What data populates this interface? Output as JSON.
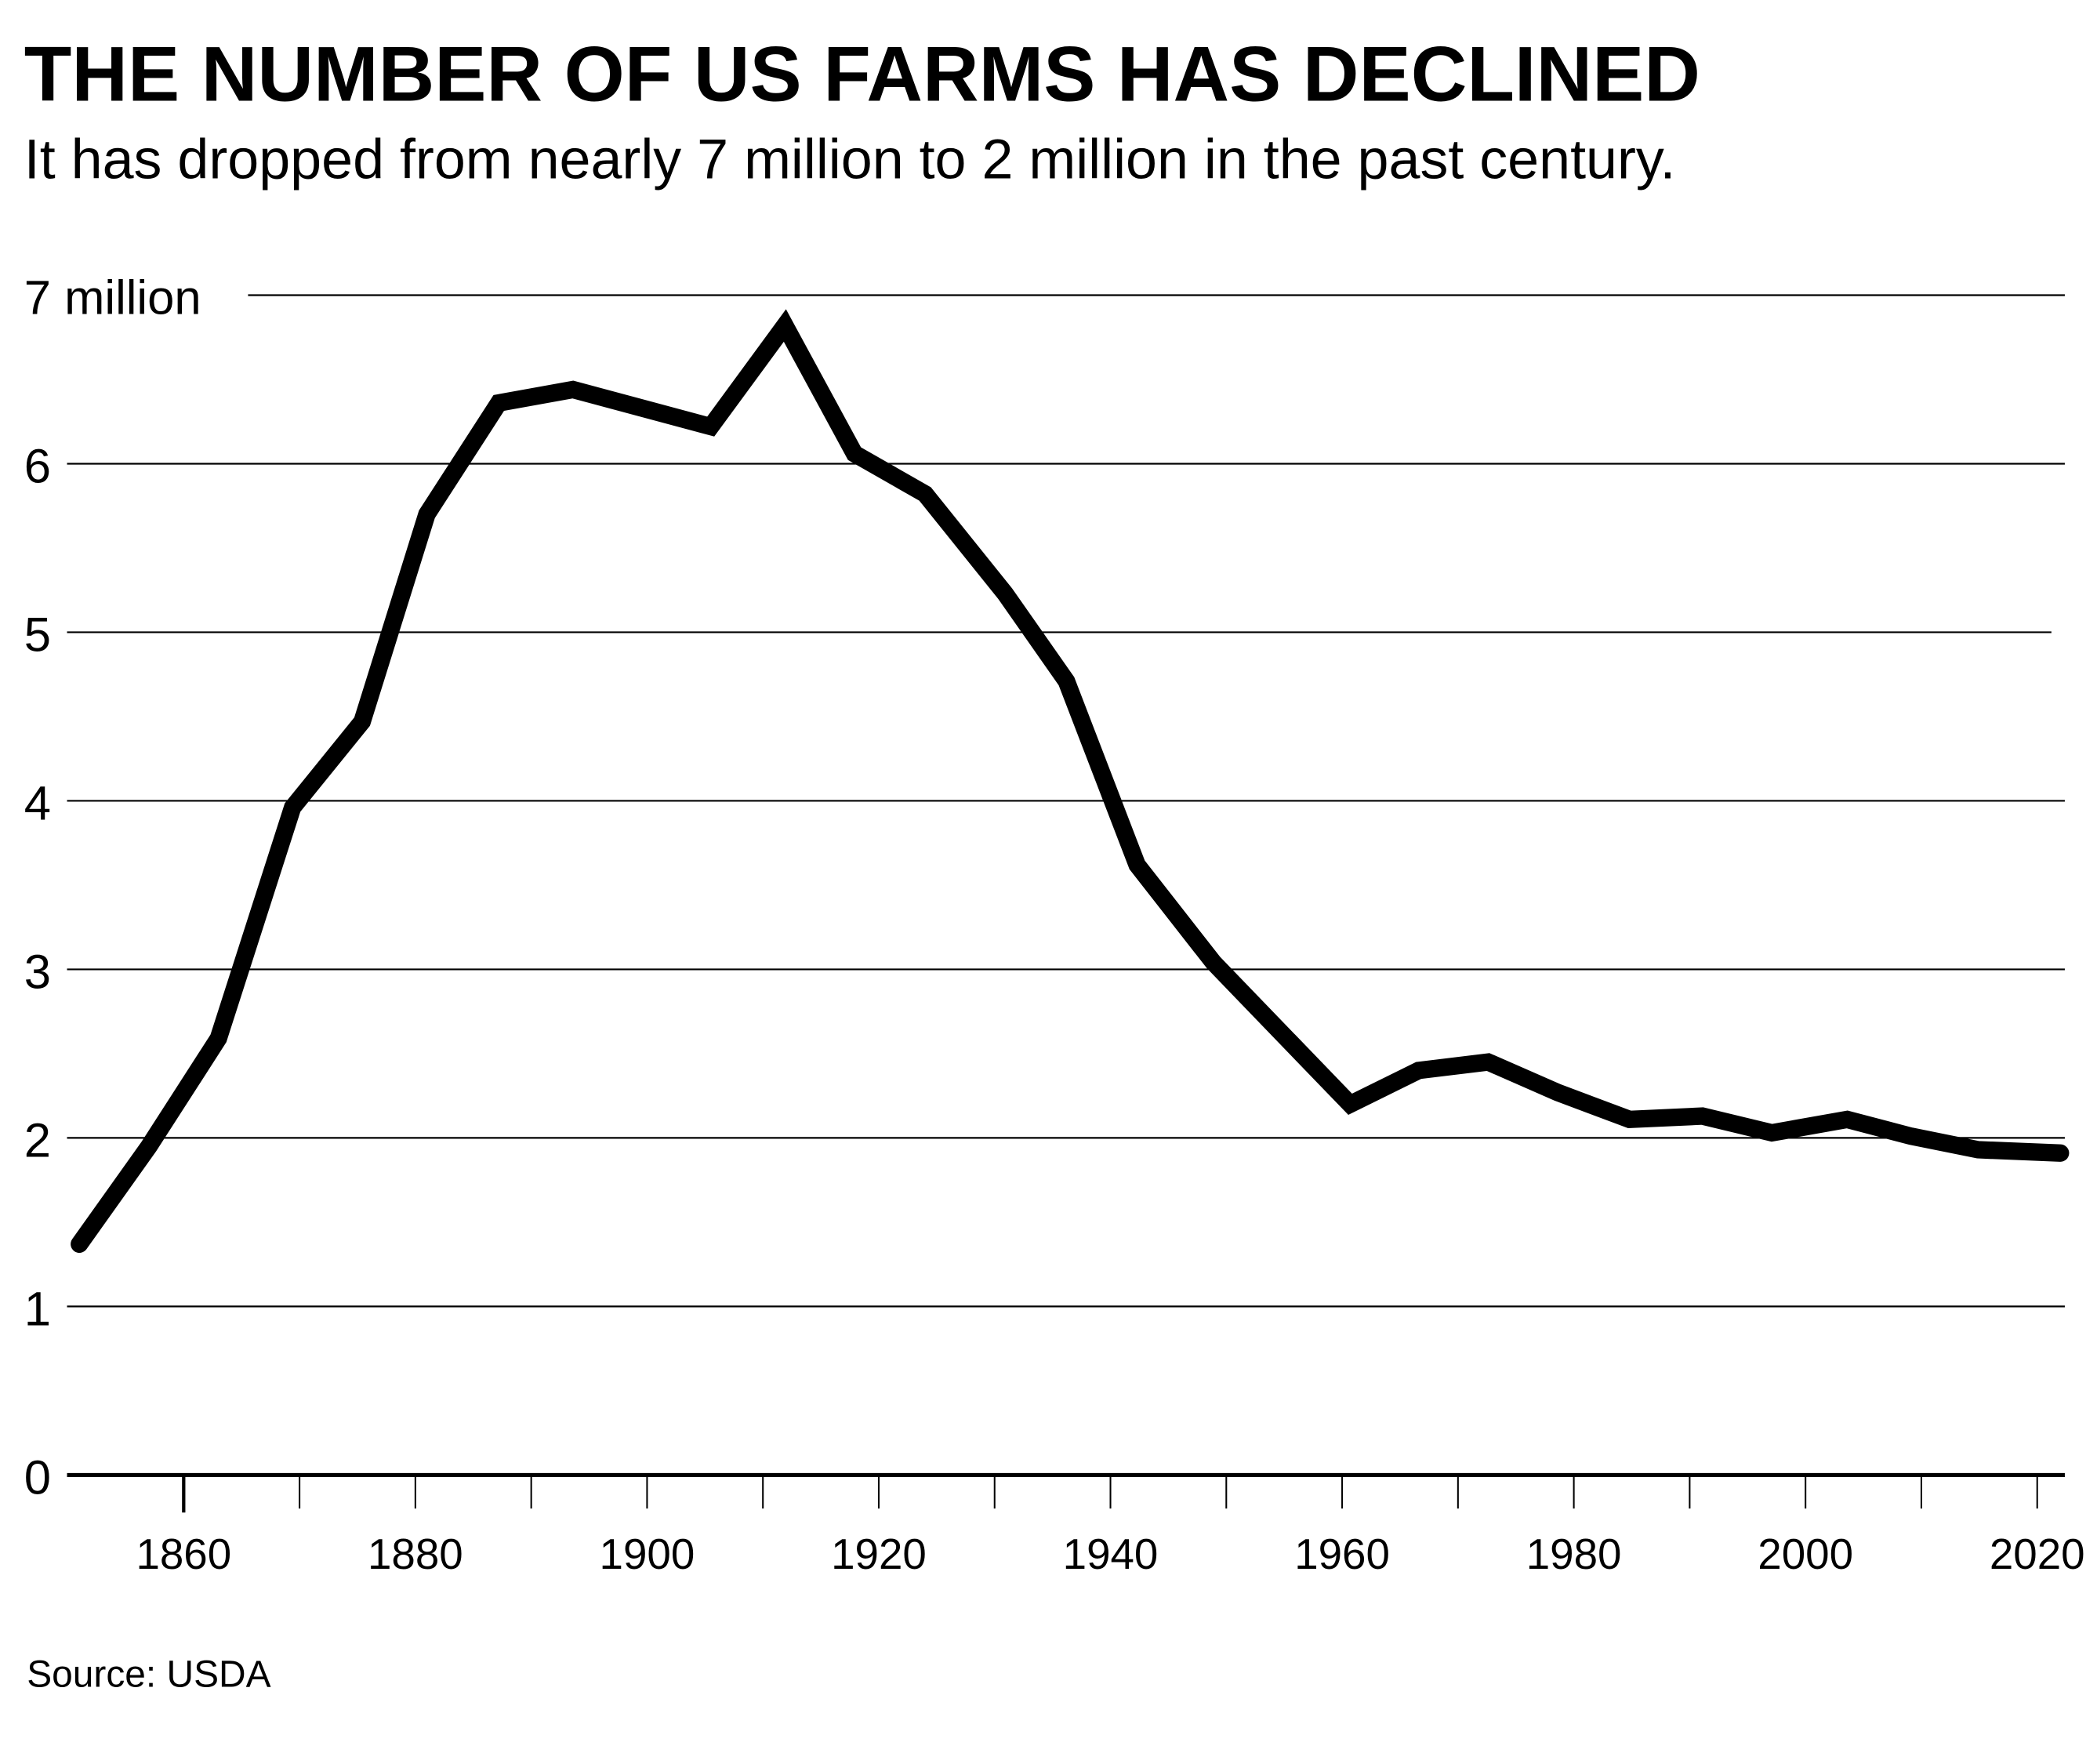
{
  "chart_data": {
    "type": "line",
    "title": "THE NUMBER OF US FARMS HAS DECLINED",
    "subtitle": "It has dropped from nearly 7 million to 2 million in the past century.",
    "source": "Source: USDA",
    "xlabel": "",
    "ylabel": "",
    "xlim": [
      1850,
      2022
    ],
    "ylim": [
      0,
      7
    ],
    "grid": true,
    "y_ticks": [
      {
        "value": 0,
        "label": "0"
      },
      {
        "value": 1,
        "label": "1"
      },
      {
        "value": 2,
        "label": "2"
      },
      {
        "value": 3,
        "label": "3"
      },
      {
        "value": 4,
        "label": "4"
      },
      {
        "value": 5,
        "label": "5"
      },
      {
        "value": 6,
        "label": "6"
      },
      {
        "value": 7,
        "label": "7 million"
      }
    ],
    "x_ticks": [
      1860,
      1870,
      1880,
      1890,
      1900,
      1910,
      1920,
      1930,
      1940,
      1950,
      1960,
      1970,
      1980,
      1990,
      2000,
      2010,
      2020
    ],
    "x_tick_labels": [
      {
        "value": 1860,
        "label": "1860"
      },
      {
        "value": 1880,
        "label": "1880"
      },
      {
        "value": 1900,
        "label": "1900"
      },
      {
        "value": 1920,
        "label": "1920"
      },
      {
        "value": 1940,
        "label": "1940"
      },
      {
        "value": 1960,
        "label": "1960"
      },
      {
        "value": 1980,
        "label": "1980"
      },
      {
        "value": 2000,
        "label": "2000"
      },
      {
        "value": 2020,
        "label": "2020"
      }
    ],
    "series": [
      {
        "name": "US farms (millions)",
        "color": "#000000",
        "x": [
          1851,
          1857,
          1863,
          1869.4,
          1875.4,
          1881,
          1887.2,
          1893.6,
          1905.5,
          1911.9,
          1917.9,
          1924,
          1930.9,
          1936.2,
          1942.3,
          1948.9,
          1960.7,
          1966.6,
          1972.6,
          1978.6,
          1984.8,
          1991.1,
          1997.1,
          2003.6,
          2009.1,
          2014.9,
          2022
        ],
        "values": [
          1.37,
          1.95,
          2.59,
          3.96,
          4.47,
          5.7,
          6.36,
          6.44,
          6.22,
          6.82,
          6.06,
          5.82,
          5.23,
          4.71,
          3.62,
          3.04,
          2.2,
          2.4,
          2.45,
          2.27,
          2.11,
          2.13,
          2.03,
          2.11,
          2.01,
          1.93,
          1.91
        ]
      }
    ]
  }
}
